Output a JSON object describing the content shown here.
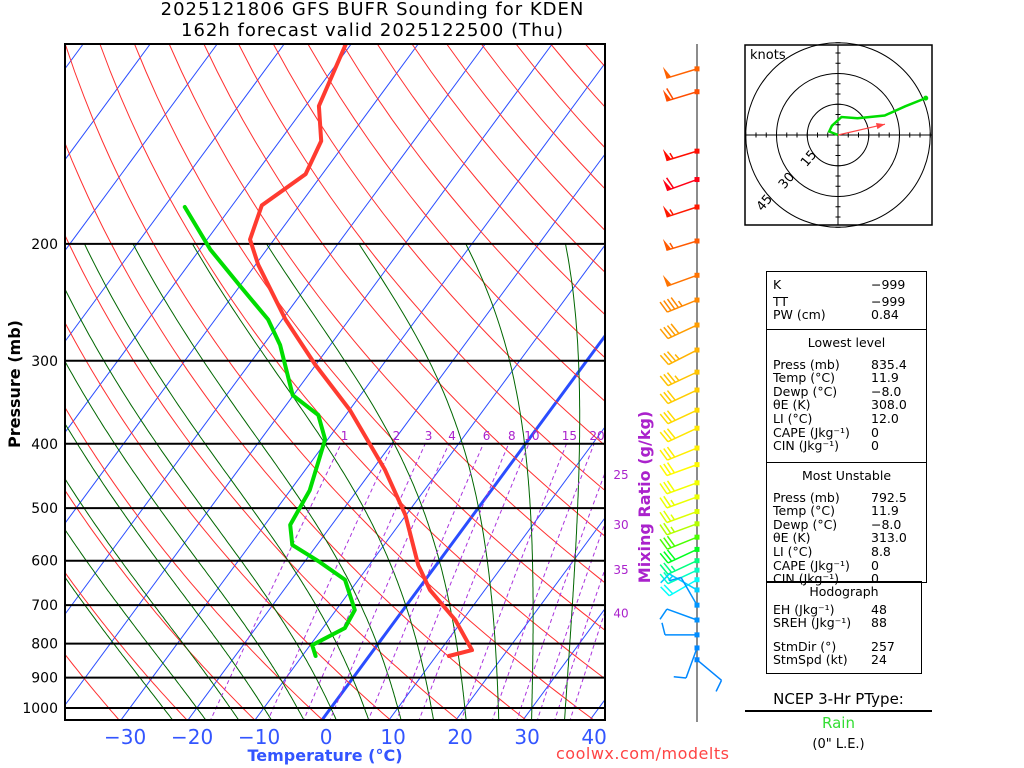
{
  "title": {
    "line1": "2025121806 GFS BUFR Sounding for KDEN",
    "line2": "162h forecast valid 2025122500 (Thu)"
  },
  "credit": "coolwx.com/modelts",
  "chart_data": {
    "type": "line",
    "subtype": "skew-t log-p",
    "xlabel": "Temperature (°C)",
    "ylabel": "Pressure (mb)",
    "mixing_label": "Mixing Ratio (g/kg)",
    "pressure_ticks": [
      200,
      300,
      400,
      500,
      600,
      700,
      800,
      900,
      1000
    ],
    "pressure_tick_labels": [
      "200",
      "300",
      "400",
      "500",
      "600",
      "700",
      "800",
      "900",
      "1000"
    ],
    "temp_ticks": [
      -30,
      -20,
      -10,
      0,
      10,
      20,
      30,
      40
    ],
    "temp_tick_labels": [
      "−30",
      "−20",
      "−10",
      "0",
      "10",
      "20",
      "30",
      "40"
    ],
    "ylim_mb": [
      1042,
      100
    ],
    "mixing_ratios": [
      1,
      2,
      3,
      4,
      6,
      8,
      10,
      15,
      20,
      25,
      30,
      35,
      40
    ],
    "mixing_ratio_labels": [
      "1",
      "2",
      "3",
      "4",
      "6",
      "8",
      "10",
      "15",
      "20",
      "25",
      "30",
      "35",
      "40"
    ],
    "series": [
      {
        "name": "Temperature",
        "color": "#ff3b30",
        "points": [
          [
            835,
            11.9
          ],
          [
            818,
            14.7
          ],
          [
            737,
            8.9
          ],
          [
            664,
            1.8
          ],
          [
            609,
            -2.7
          ],
          [
            512,
            -10.1
          ],
          [
            438,
            -18.1
          ],
          [
            356,
            -29.9
          ],
          [
            304,
            -40.1
          ],
          [
            260,
            -49.5
          ],
          [
            215,
            -59.6
          ],
          [
            197,
            -63.6
          ],
          [
            175,
            -65.6
          ],
          [
            157,
            -62.5
          ],
          [
            140,
            -63.8
          ],
          [
            124,
            -68.0
          ],
          [
            100,
            -70.8
          ]
        ]
      },
      {
        "name": "Dewpoint",
        "color": "#00dd00",
        "points": [
          [
            835,
            -8.0
          ],
          [
            804,
            -9.7
          ],
          [
            758,
            -6.7
          ],
          [
            712,
            -7.2
          ],
          [
            641,
            -12.0
          ],
          [
            603,
            -17.7
          ],
          [
            568,
            -23.7
          ],
          [
            530,
            -26.2
          ],
          [
            470,
            -27.1
          ],
          [
            394,
            -30.4
          ],
          [
            362,
            -34.1
          ],
          [
            338,
            -40.1
          ],
          [
            284,
            -47.5
          ],
          [
            260,
            -52.1
          ],
          [
            231,
            -60.1
          ],
          [
            204,
            -68.4
          ],
          [
            176,
            -76.9
          ]
        ]
      }
    ],
    "wind_barbs": [
      {
        "p": 109,
        "dir": 253,
        "spd": 50
      },
      {
        "p": 118,
        "dir": 253,
        "spd": 60
      },
      {
        "p": 145,
        "dir": 253,
        "spd": 55
      },
      {
        "p": 160,
        "dir": 250,
        "spd": 60
      },
      {
        "p": 176,
        "dir": 252,
        "spd": 55
      },
      {
        "p": 198,
        "dir": 253,
        "spd": 55
      },
      {
        "p": 223,
        "dir": 250,
        "spd": 50
      },
      {
        "p": 243,
        "dir": 248,
        "spd": 45
      },
      {
        "p": 265,
        "dir": 245,
        "spd": 40
      },
      {
        "p": 289,
        "dir": 243,
        "spd": 35
      },
      {
        "p": 312,
        "dir": 245,
        "spd": 35
      },
      {
        "p": 332,
        "dir": 245,
        "spd": 30
      },
      {
        "p": 356,
        "dir": 245,
        "spd": 30
      },
      {
        "p": 379,
        "dir": 245,
        "spd": 30
      },
      {
        "p": 406,
        "dir": 248,
        "spd": 30
      },
      {
        "p": 430,
        "dir": 250,
        "spd": 30
      },
      {
        "p": 458,
        "dir": 250,
        "spd": 30
      },
      {
        "p": 481,
        "dir": 250,
        "spd": 25
      },
      {
        "p": 506,
        "dir": 250,
        "spd": 25
      },
      {
        "p": 528,
        "dir": 250,
        "spd": 25
      },
      {
        "p": 553,
        "dir": 248,
        "spd": 30
      },
      {
        "p": 577,
        "dir": 245,
        "spd": 30
      },
      {
        "p": 600,
        "dir": 245,
        "spd": 25
      },
      {
        "p": 620,
        "dir": 245,
        "spd": 20
      },
      {
        "p": 641,
        "dir": 240,
        "spd": 20
      },
      {
        "p": 664,
        "dir": 300,
        "spd": 15
      },
      {
        "p": 700,
        "dir": 330,
        "spd": 10
      },
      {
        "p": 737,
        "dir": 290,
        "spd": 10
      },
      {
        "p": 776,
        "dir": 270,
        "spd": 10
      },
      {
        "p": 812,
        "dir": 200,
        "spd": 10
      },
      {
        "p": 846,
        "dir": 130,
        "spd": 10
      }
    ]
  },
  "hodograph": {
    "units_label": "knots",
    "rings": [
      15,
      30,
      45
    ],
    "ring_labels": [
      "15",
      "30",
      "45"
    ],
    "trace_uv": [
      [
        0,
        0
      ],
      [
        -4.3,
        1.7
      ],
      [
        -3,
        4.5
      ],
      [
        1.7,
        8.8
      ],
      [
        9.5,
        8.2
      ],
      [
        22.8,
        9.5
      ],
      [
        32.8,
        14
      ],
      [
        42.8,
        18
      ]
    ],
    "storm_motion": {
      "dir": 257,
      "spd": 24
    }
  },
  "stats": {
    "indices": [
      {
        "label": "K",
        "value": "−999"
      },
      {
        "label": "TT",
        "value": "−999"
      },
      {
        "label": "PW (cm)",
        "value": "0.84"
      }
    ],
    "lowest": {
      "header": "Lowest level",
      "rows": [
        {
          "label": "Press (mb)",
          "value": "835.4"
        },
        {
          "label": "Temp (°C)",
          "value": "11.9"
        },
        {
          "label": "Dewp (°C)",
          "value": "−8.0"
        },
        {
          "label": "θE (K)",
          "value": "308.0"
        },
        {
          "label": "LI (°C)",
          "value": "12.0"
        },
        {
          "label": "CAPE (Jkg⁻¹)",
          "value": "0"
        },
        {
          "label": "CIN (Jkg⁻¹)",
          "value": "0"
        }
      ]
    },
    "unstable": {
      "header": "Most Unstable",
      "rows": [
        {
          "label": "Press (mb)",
          "value": "792.5"
        },
        {
          "label": "Temp (°C)",
          "value": "11.9"
        },
        {
          "label": "Dewp (°C)",
          "value": "−8.0"
        },
        {
          "label": "θE (K)",
          "value": "313.0"
        },
        {
          "label": "LI (°C)",
          "value": "8.8"
        },
        {
          "label": "CAPE (Jkg⁻¹)",
          "value": "0"
        },
        {
          "label": "CIN (Jkg⁻¹)",
          "value": "0"
        }
      ]
    },
    "hodo": {
      "header": "Hodograph",
      "rows": [
        {
          "label": "EH (Jkg⁻¹)",
          "value": "48"
        },
        {
          "label": "SREH (Jkg⁻¹)",
          "value": "88"
        }
      ],
      "storm": [
        {
          "label": "StmDir (°)",
          "value": "257"
        },
        {
          "label": "StmSpd (kt)",
          "value": "24"
        }
      ]
    }
  },
  "ptype": {
    "header": "NCEP 3-Hr PType:",
    "value": "Rain",
    "value_color": "#33dd33",
    "accum": "(0\" L.E.)"
  }
}
